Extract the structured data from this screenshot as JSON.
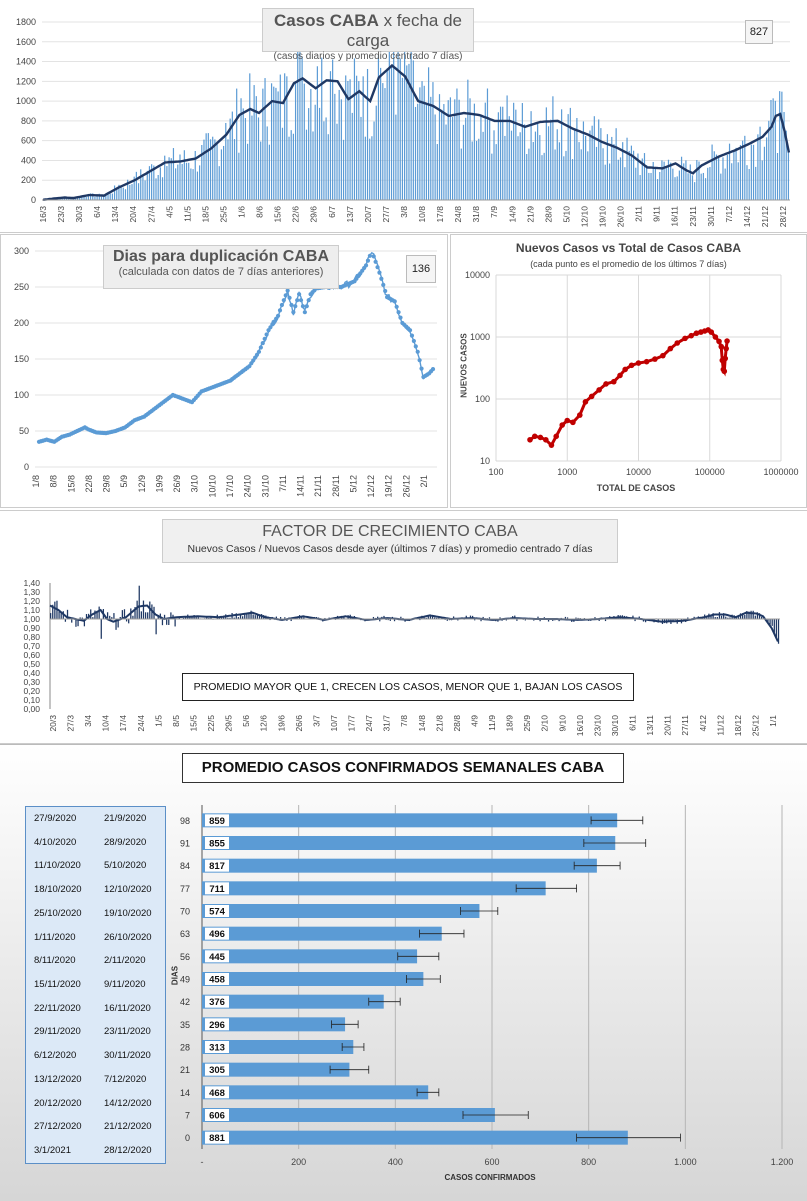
{
  "panel1": {
    "title_bold": "Casos  CABA",
    "title_rest": " x fecha de carga",
    "subtitle": "(casos diarios y promedio centrado 7 días)",
    "badge": "827",
    "colors": {
      "bars": "#5b9bd5",
      "avg": "#1f3864"
    },
    "chart_data": {
      "type": "bar",
      "title": "Casos CABA x fecha de carga",
      "ylim": [
        0,
        1800
      ],
      "yticks": [
        0,
        200,
        400,
        600,
        800,
        1000,
        1200,
        1400,
        1600,
        1800
      ],
      "xticks": [
        "16/3",
        "23/3",
        "30/3",
        "6/4",
        "13/4",
        "20/4",
        "27/4",
        "4/5",
        "11/5",
        "18/5",
        "25/5",
        "1/6",
        "8/6",
        "15/6",
        "22/6",
        "29/6",
        "6/7",
        "13/7",
        "20/7",
        "27/7",
        "3/8",
        "10/8",
        "17/8",
        "24/8",
        "31/8",
        "7/9",
        "14/9",
        "21/9",
        "28/9",
        "5/10",
        "12/10",
        "19/10",
        "26/10",
        "2/11",
        "9/11",
        "16/11",
        "23/11",
        "30/11",
        "7/12",
        "14/12",
        "21/12",
        "28/12"
      ],
      "avg_anchors": [
        [
          0,
          2
        ],
        [
          5,
          15
        ],
        [
          10,
          25
        ],
        [
          14,
          20
        ],
        [
          21,
          50
        ],
        [
          28,
          45
        ],
        [
          35,
          130
        ],
        [
          42,
          200
        ],
        [
          49,
          290
        ],
        [
          56,
          380
        ],
        [
          63,
          390
        ],
        [
          70,
          420
        ],
        [
          77,
          520
        ],
        [
          84,
          660
        ],
        [
          90,
          860
        ],
        [
          95,
          920
        ],
        [
          99,
          880
        ],
        [
          105,
          1000
        ],
        [
          110,
          980
        ],
        [
          115,
          1180
        ],
        [
          119,
          1230
        ],
        [
          125,
          1130
        ],
        [
          130,
          1210
        ],
        [
          135,
          1200
        ],
        [
          140,
          1020
        ],
        [
          145,
          1100
        ],
        [
          150,
          1000
        ],
        [
          154,
          1240
        ],
        [
          160,
          1360
        ],
        [
          166,
          1250
        ],
        [
          172,
          1000
        ],
        [
          179,
          950
        ],
        [
          186,
          850
        ],
        [
          193,
          880
        ],
        [
          200,
          860
        ],
        [
          207,
          800
        ],
        [
          214,
          800
        ],
        [
          221,
          740
        ],
        [
          228,
          790
        ],
        [
          236,
          800
        ],
        [
          243,
          720
        ],
        [
          250,
          660
        ],
        [
          256,
          590
        ],
        [
          263,
          530
        ],
        [
          270,
          450
        ],
        [
          277,
          330
        ],
        [
          284,
          320
        ],
        [
          290,
          370
        ],
        [
          295,
          300
        ],
        [
          298,
          270
        ],
        [
          302,
          350
        ],
        [
          310,
          440
        ],
        [
          317,
          500
        ],
        [
          324,
          570
        ],
        [
          330,
          640
        ],
        [
          334,
          740
        ],
        [
          336,
          850
        ],
        [
          338,
          870
        ],
        [
          340,
          700
        ],
        [
          342,
          480
        ]
      ],
      "series": [
        {
          "name": "casos diarios",
          "n": 343
        },
        {
          "name": "promedio centrado 7 días"
        }
      ]
    }
  },
  "panel2": {
    "title": "Dias para duplicación CABA",
    "subtitle": "(calculada con datos de 7 días anteriores)",
    "badge": "136",
    "color": "#5b9bd5",
    "chart_data": {
      "type": "line",
      "title": "Dias para duplicación CABA",
      "ylim": [
        0,
        300
      ],
      "yticks": [
        0,
        50,
        100,
        150,
        200,
        250,
        300
      ],
      "xticks": [
        "1/8",
        "8/8",
        "15/8",
        "22/8",
        "29/8",
        "5/9",
        "12/9",
        "19/9",
        "26/9",
        "3/10",
        "10/10",
        "17/10",
        "24/10",
        "31/10",
        "7/11",
        "14/11",
        "21/11",
        "28/11",
        "5/12",
        "12/12",
        "19/12",
        "26/12",
        "2/1"
      ],
      "anchors": [
        [
          0,
          35
        ],
        [
          4,
          38
        ],
        [
          8,
          35
        ],
        [
          12,
          42
        ],
        [
          16,
          45
        ],
        [
          20,
          50
        ],
        [
          24,
          55
        ],
        [
          26,
          52
        ],
        [
          30,
          48
        ],
        [
          35,
          47
        ],
        [
          40,
          50
        ],
        [
          45,
          55
        ],
        [
          50,
          65
        ],
        [
          55,
          70
        ],
        [
          60,
          80
        ],
        [
          65,
          90
        ],
        [
          70,
          100
        ],
        [
          75,
          95
        ],
        [
          80,
          90
        ],
        [
          85,
          105
        ],
        [
          90,
          110
        ],
        [
          95,
          115
        ],
        [
          100,
          120
        ],
        [
          105,
          130
        ],
        [
          110,
          140
        ],
        [
          115,
          160
        ],
        [
          120,
          190
        ],
        [
          125,
          210
        ],
        [
          127,
          225
        ],
        [
          130,
          245
        ],
        [
          133,
          215
        ],
        [
          136,
          240
        ],
        [
          139,
          215
        ],
        [
          142,
          240
        ],
        [
          145,
          248
        ],
        [
          150,
          250
        ],
        [
          158,
          250
        ],
        [
          165,
          258
        ],
        [
          171,
          280
        ],
        [
          174,
          300
        ],
        [
          178,
          270
        ],
        [
          182,
          236
        ],
        [
          186,
          230
        ],
        [
          190,
          200
        ],
        [
          194,
          190
        ],
        [
          198,
          160
        ],
        [
          201,
          125
        ],
        [
          204,
          130
        ],
        [
          206,
          136
        ]
      ]
    }
  },
  "panel3": {
    "title": "Nuevos Casos vs Total de Casos CABA",
    "subtitle": "(cada punto es el promedio de los últimos 7 días)",
    "xlabel": "TOTAL DE CASOS",
    "ylabel": "NUEVOS CASOS",
    "color": "#c00000",
    "chart_data": {
      "type": "scatter",
      "title": "Nuevos Casos vs Total de Casos CABA",
      "xscale": "log",
      "yscale": "log",
      "xlim": [
        100,
        1000000
      ],
      "ylim": [
        10,
        10000
      ],
      "xticks": [
        "100",
        "1000",
        "10000",
        "100000",
        "1000000"
      ],
      "yticks": [
        "10",
        "100",
        "1000",
        "10000"
      ],
      "points": [
        [
          300,
          22
        ],
        [
          350,
          25
        ],
        [
          420,
          24
        ],
        [
          500,
          22
        ],
        [
          600,
          18
        ],
        [
          700,
          25
        ],
        [
          850,
          38
        ],
        [
          1000,
          45
        ],
        [
          1200,
          42
        ],
        [
          1500,
          55
        ],
        [
          1800,
          90
        ],
        [
          2200,
          110
        ],
        [
          2800,
          140
        ],
        [
          3500,
          175
        ],
        [
          4500,
          190
        ],
        [
          5500,
          240
        ],
        [
          6500,
          300
        ],
        [
          8000,
          350
        ],
        [
          10000,
          380
        ],
        [
          13000,
          400
        ],
        [
          17000,
          440
        ],
        [
          22000,
          500
        ],
        [
          28000,
          650
        ],
        [
          35000,
          800
        ],
        [
          45000,
          950
        ],
        [
          55000,
          1050
        ],
        [
          65000,
          1150
        ],
        [
          75000,
          1200
        ],
        [
          85000,
          1250
        ],
        [
          95000,
          1300
        ],
        [
          105000,
          1200
        ],
        [
          120000,
          1000
        ],
        [
          135000,
          850
        ],
        [
          145000,
          700
        ],
        [
          150000,
          420
        ],
        [
          155000,
          300
        ],
        [
          160000,
          280
        ],
        [
          165000,
          450
        ],
        [
          170000,
          650
        ],
        [
          175000,
          860
        ]
      ]
    }
  },
  "panel4": {
    "title": "FACTOR DE CRECIMIENTO CABA",
    "subtitle": "Nuevos Casos  / Nuevos Casos desde ayer (últimos 7 días) y promedio  centrado 7 días",
    "note": "PROMEDIO MAYOR QUE 1, CRECEN LOS CASOS, MENOR QUE 1, BAJAN LOS CASOS",
    "color": "#1f3864",
    "chart_data": {
      "type": "bar",
      "title": "FACTOR DE CRECIMIENTO CABA",
      "ylim": [
        0,
        1.4
      ],
      "yticks": [
        "0,00",
        "0,10",
        "0,20",
        "0,30",
        "0,40",
        "0,50",
        "0,60",
        "0,70",
        "0,80",
        "0,90",
        "1,00",
        "1,10",
        "1,20",
        "1,30",
        "1,40"
      ],
      "baseline": 1.0,
      "xticks": [
        "20/3",
        "27/3",
        "3/4",
        "10/4",
        "17/4",
        "24/4",
        "1/5",
        "8/5",
        "15/5",
        "22/5",
        "29/5",
        "5/6",
        "12/6",
        "19/6",
        "26/6",
        "3/7",
        "10/7",
        "17/7",
        "24/7",
        "31/7",
        "7/8",
        "14/8",
        "21/8",
        "28/8",
        "4/9",
        "11/9",
        "18/9",
        "25/9",
        "2/10",
        "9/10",
        "16/10",
        "23/10",
        "30/10",
        "6/11",
        "13/11",
        "20/11",
        "27/11",
        "4/12",
        "11/12",
        "18/12",
        "25/12",
        "1/1"
      ],
      "avg_anchors": [
        [
          0,
          1.15
        ],
        [
          4,
          1.1
        ],
        [
          8,
          1.02
        ],
        [
          12,
          1.0
        ],
        [
          16,
          0.98
        ],
        [
          20,
          1.05
        ],
        [
          24,
          1.1
        ],
        [
          27,
          1.0
        ],
        [
          30,
          0.97
        ],
        [
          36,
          1.02
        ],
        [
          42,
          1.14
        ],
        [
          46,
          1.15
        ],
        [
          50,
          1.05
        ],
        [
          54,
          1.0
        ],
        [
          60,
          1.02
        ],
        [
          70,
          1.03
        ],
        [
          80,
          1.02
        ],
        [
          90,
          1.05
        ],
        [
          96,
          1.07
        ],
        [
          102,
          1.02
        ],
        [
          110,
          0.99
        ],
        [
          120,
          1.03
        ],
        [
          130,
          0.99
        ],
        [
          140,
          1.03
        ],
        [
          150,
          0.99
        ],
        [
          160,
          1.01
        ],
        [
          170,
          0.99
        ],
        [
          180,
          1.04
        ],
        [
          190,
          1.0
        ],
        [
          200,
          1.01
        ],
        [
          210,
          0.99
        ],
        [
          220,
          1.01
        ],
        [
          230,
          1.0
        ],
        [
          240,
          1.0
        ],
        [
          250,
          0.99
        ],
        [
          260,
          1.0
        ],
        [
          270,
          1.02
        ],
        [
          280,
          1.0
        ],
        [
          290,
          0.97
        ],
        [
          300,
          0.98
        ],
        [
          310,
          1.02
        ],
        [
          315,
          1.05
        ],
        [
          320,
          1.05
        ],
        [
          325,
          1.02
        ],
        [
          330,
          1.07
        ],
        [
          335,
          1.06
        ],
        [
          338,
          1.03
        ],
        [
          342,
          0.9
        ],
        [
          345,
          0.75
        ]
      ]
    }
  },
  "panel5": {
    "title": "PROMEDIO CASOS CONFIRMADOS SEMANALES CABA",
    "xlabel": "CASOS CONFIRMADOS",
    "ylabel": "DIAS",
    "color": "#5b9bd5",
    "weeks": [
      {
        "end": "27/9/2020",
        "start": "21/9/2020"
      },
      {
        "end": "4/10/2020",
        "start": "28/9/2020"
      },
      {
        "end": "11/10/2020",
        "start": "5/10/2020"
      },
      {
        "end": "18/10/2020",
        "start": "12/10/2020"
      },
      {
        "end": "25/10/2020",
        "start": "19/10/2020"
      },
      {
        "end": "1/11/2020",
        "start": "26/10/2020"
      },
      {
        "end": "8/11/2020",
        "start": "2/11/2020"
      },
      {
        "end": "15/11/2020",
        "start": "9/11/2020"
      },
      {
        "end": "22/11/2020",
        "start": "16/11/2020"
      },
      {
        "end": "29/11/2020",
        "start": "23/11/2020"
      },
      {
        "end": "6/12/2020",
        "start": "30/11/2020"
      },
      {
        "end": "13/12/2020",
        "start": "7/12/2020"
      },
      {
        "end": "20/12/2020",
        "start": "14/12/2020"
      },
      {
        "end": "27/12/2020",
        "start": "21/12/2020"
      },
      {
        "end": "3/1/2021",
        "start": "28/12/2020"
      }
    ],
    "chart_data": {
      "type": "bar",
      "orientation": "horizontal",
      "title": "PROMEDIO CASOS CONFIRMADOS SEMANALES CABA",
      "xlabel": "CASOS CONFIRMADOS",
      "ylabel": "DIAS",
      "xlim": [
        0,
        1200
      ],
      "xticks": [
        "-",
        "200",
        "400",
        "600",
        "800",
        "1.000",
        "1.200"
      ],
      "categories": [
        "98",
        "91",
        "84",
        "77",
        "70",
        "63",
        "56",
        "49",
        "42",
        "35",
        "28",
        "21",
        "14",
        "7",
        "0"
      ],
      "values": [
        859,
        855,
        817,
        711,
        574,
        496,
        445,
        458,
        376,
        296,
        313,
        305,
        468,
        606,
        881
      ],
      "error_low": [
        805,
        790,
        770,
        650,
        535,
        450,
        405,
        423,
        345,
        268,
        290,
        265,
        445,
        540,
        775
      ],
      "error_high": [
        912,
        918,
        865,
        775,
        612,
        542,
        490,
        493,
        410,
        323,
        335,
        345,
        490,
        675,
        990
      ]
    }
  }
}
